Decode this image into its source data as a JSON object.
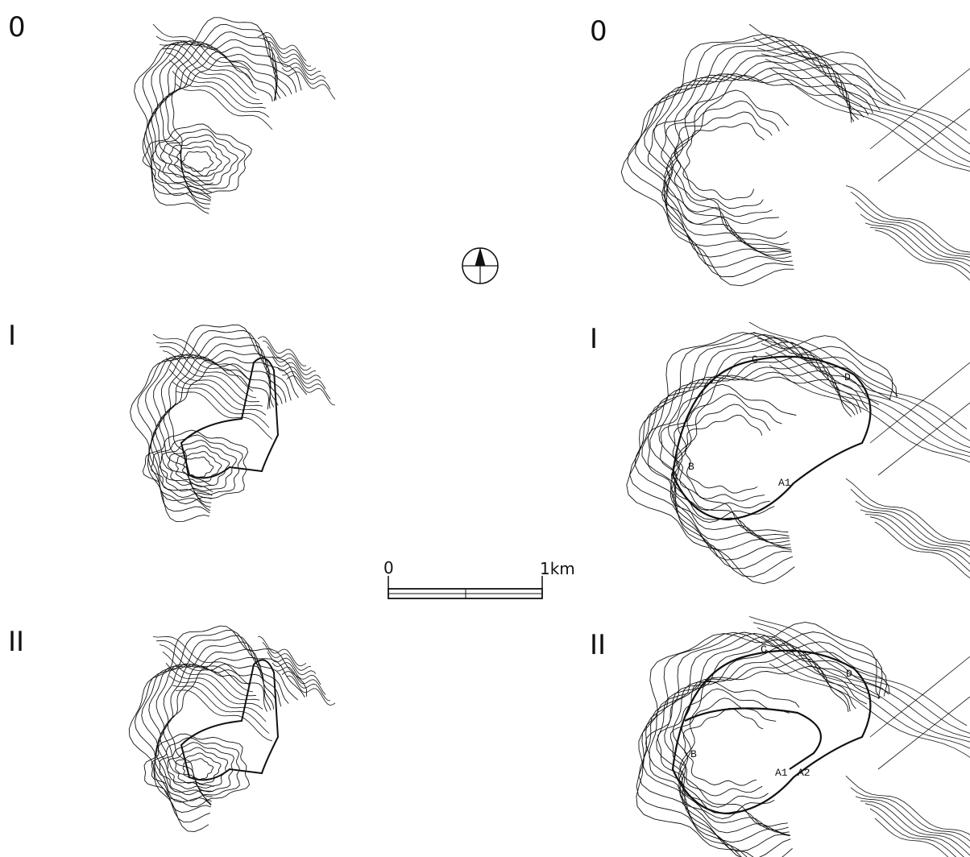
{
  "left_maps": [
    {
      "label": "0"
    },
    {
      "label": "I"
    },
    {
      "label": "II"
    }
  ],
  "right_maps": [
    {
      "label": "0"
    },
    {
      "label": "I",
      "annotations": [
        "C",
        "D",
        "B",
        "A1"
      ]
    },
    {
      "label": "II",
      "annotations": [
        "C",
        "D",
        "B",
        "A1",
        "A2"
      ]
    }
  ],
  "scale_bar": {
    "start": "0",
    "end": "1km"
  }
}
